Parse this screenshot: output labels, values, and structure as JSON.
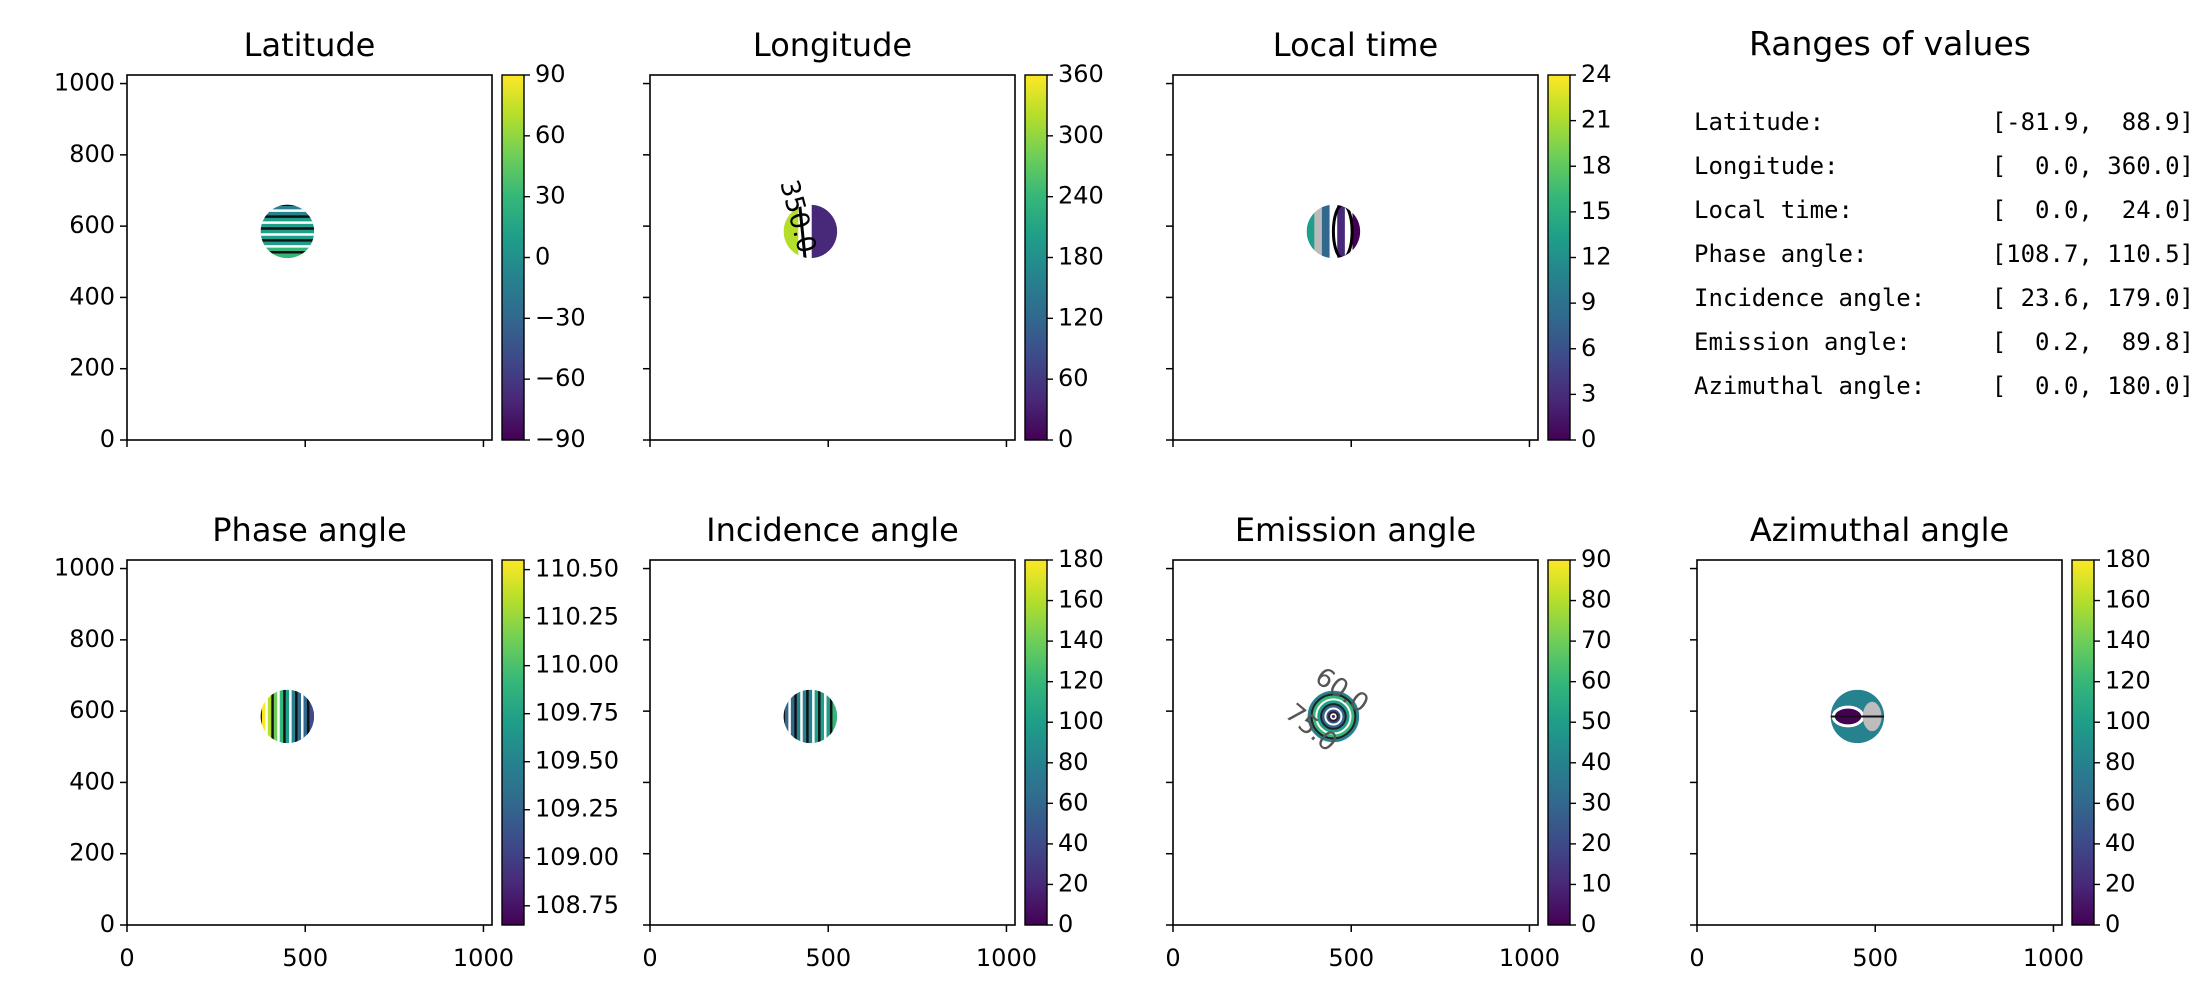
{
  "colormap": [
    "#440154",
    "#482878",
    "#3e4a89",
    "#31688e",
    "#26828e",
    "#1f9e89",
    "#35b779",
    "#6ece58",
    "#b5de2b",
    "#fde725"
  ],
  "ranges_panel": {
    "title": "Ranges of values",
    "rows": [
      {
        "label": "Latitude:",
        "value": "[-81.9,  88.9]"
      },
      {
        "label": "Longitude:",
        "value": "[  0.0, 360.0]"
      },
      {
        "label": "Local time:",
        "value": "[  0.0,  24.0]"
      },
      {
        "label": "Phase angle:",
        "value": "[108.7, 110.5]"
      },
      {
        "label": "Incidence angle:",
        "value": "[ 23.6, 179.0]"
      },
      {
        "label": "Emission angle:",
        "value": "[  0.2,  89.8]"
      },
      {
        "label": "Azimuthal angle:",
        "value": "[  0.0, 180.0]"
      }
    ]
  },
  "chart_data": [
    {
      "type": "heatmap",
      "title": "Latitude",
      "xlim": [
        0,
        1024
      ],
      "ylim": [
        0,
        1024
      ],
      "x_ticks": [
        0,
        500,
        1000
      ],
      "y_ticks": [
        0,
        200,
        400,
        600,
        800,
        1000
      ],
      "show_x_tick_labels": false,
      "show_y_tick_labels": true,
      "disk": {
        "cx": 450,
        "cy": 585,
        "r": 75
      },
      "colorbar": {
        "min": -90,
        "max": 90,
        "ticks": [
          "90",
          "60",
          "30",
          "0",
          "−30",
          "−60",
          "−90"
        ]
      },
      "contour_labels": []
    },
    {
      "type": "heatmap",
      "title": "Longitude",
      "xlim": [
        0,
        1024
      ],
      "ylim": [
        0,
        1024
      ],
      "x_ticks": [
        0,
        500,
        1000
      ],
      "y_ticks": [
        0,
        200,
        400,
        600,
        800,
        1000
      ],
      "show_x_tick_labels": false,
      "show_y_tick_labels": false,
      "disk": {
        "cx": 450,
        "cy": 585,
        "r": 75
      },
      "colorbar": {
        "min": 0,
        "max": 360,
        "ticks": [
          "360",
          "300",
          "240",
          "180",
          "120",
          "60",
          "0"
        ]
      },
      "contour_labels": [
        "350.0"
      ]
    },
    {
      "type": "heatmap",
      "title": "Local time",
      "xlim": [
        0,
        1024
      ],
      "ylim": [
        0,
        1024
      ],
      "x_ticks": [
        0,
        500,
        1000
      ],
      "y_ticks": [
        0,
        200,
        400,
        600,
        800,
        1000
      ],
      "show_x_tick_labels": false,
      "show_y_tick_labels": false,
      "disk": {
        "cx": 450,
        "cy": 585,
        "r": 75
      },
      "colorbar": {
        "min": 0,
        "max": 24,
        "ticks": [
          "24",
          "21",
          "18",
          "15",
          "12",
          "9",
          "6",
          "3",
          "0"
        ]
      },
      "contour_labels": []
    },
    null,
    {
      "type": "heatmap",
      "title": "Phase angle",
      "xlim": [
        0,
        1024
      ],
      "ylim": [
        0,
        1024
      ],
      "x_ticks": [
        0,
        500,
        1000
      ],
      "y_ticks": [
        0,
        200,
        400,
        600,
        800,
        1000
      ],
      "show_x_tick_labels": true,
      "show_y_tick_labels": true,
      "disk": {
        "cx": 450,
        "cy": 585,
        "r": 75
      },
      "colorbar": {
        "min": 108.65,
        "max": 110.55,
        "ticks": [
          "110.50",
          "110.25",
          "110.00",
          "109.75",
          "109.50",
          "109.25",
          "109.00",
          "108.75"
        ],
        "tick_values": [
          110.5,
          110.25,
          110.0,
          109.75,
          109.5,
          109.25,
          109.0,
          108.75
        ]
      },
      "contour_labels": []
    },
    {
      "type": "heatmap",
      "title": "Incidence angle",
      "xlim": [
        0,
        1024
      ],
      "ylim": [
        0,
        1024
      ],
      "x_ticks": [
        0,
        500,
        1000
      ],
      "y_ticks": [
        0,
        200,
        400,
        600,
        800,
        1000
      ],
      "show_x_tick_labels": true,
      "show_y_tick_labels": false,
      "disk": {
        "cx": 450,
        "cy": 585,
        "r": 75
      },
      "colorbar": {
        "min": 0,
        "max": 180,
        "ticks": [
          "180",
          "160",
          "140",
          "120",
          "100",
          "80",
          "60",
          "40",
          "20",
          "0"
        ]
      },
      "contour_labels": []
    },
    {
      "type": "heatmap",
      "title": "Emission angle",
      "xlim": [
        0,
        1024
      ],
      "ylim": [
        0,
        1024
      ],
      "x_ticks": [
        0,
        500,
        1000
      ],
      "y_ticks": [
        0,
        200,
        400,
        600,
        800,
        1000
      ],
      "show_x_tick_labels": true,
      "show_y_tick_labels": false,
      "disk": {
        "cx": 450,
        "cy": 585,
        "r": 75
      },
      "colorbar": {
        "min": 0,
        "max": 90,
        "ticks": [
          "90",
          "80",
          "70",
          "60",
          "50",
          "40",
          "30",
          "20",
          "10",
          "0"
        ]
      },
      "contour_labels": [
        "60.0",
        "75.0"
      ]
    },
    {
      "type": "heatmap",
      "title": "Azimuthal angle",
      "xlim": [
        0,
        1024
      ],
      "ylim": [
        0,
        1024
      ],
      "x_ticks": [
        0,
        500,
        1000
      ],
      "y_ticks": [
        0,
        200,
        400,
        600,
        800,
        1000
      ],
      "show_x_tick_labels": true,
      "show_y_tick_labels": false,
      "disk": {
        "cx": 450,
        "cy": 585,
        "r": 75
      },
      "colorbar": {
        "min": 0,
        "max": 180,
        "ticks": [
          "180",
          "160",
          "140",
          "120",
          "100",
          "80",
          "60",
          "40",
          "20",
          "0"
        ]
      },
      "contour_labels": []
    }
  ]
}
